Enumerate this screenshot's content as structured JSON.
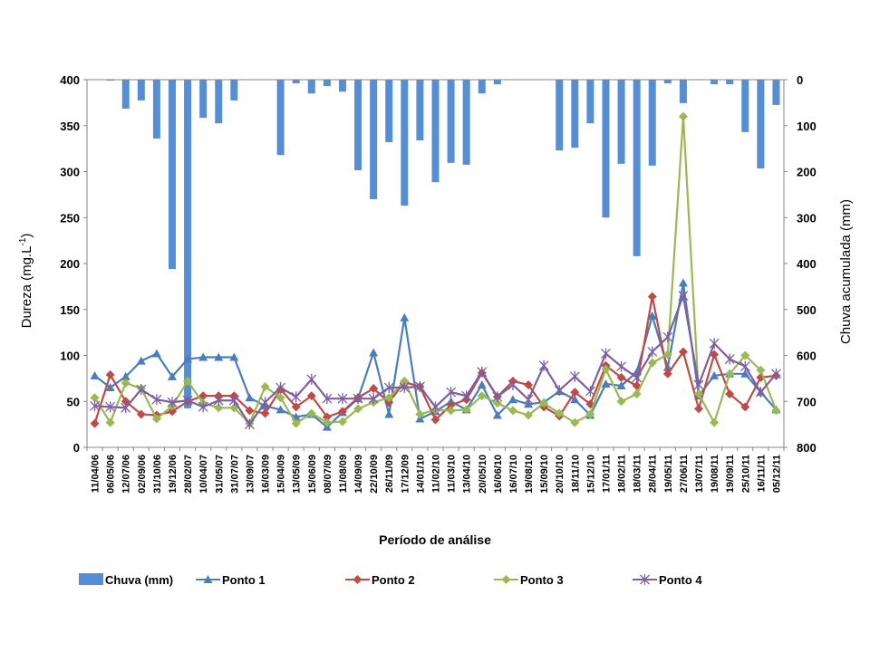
{
  "chart_data": {
    "type": "line",
    "title": "",
    "xlabel": "Período de análise",
    "ylabel": "Dureza (mg.L-1)",
    "ylabel_main": "Dureza (mg.L",
    "ylabel_sup": "-1",
    "ylabel_close": ")",
    "y2label": "Chuva acumulada (mm)",
    "ylim": [
      0,
      400
    ],
    "y2lim": [
      800,
      0
    ],
    "y2_inverted": true,
    "yticks": [
      "0",
      "50",
      "100",
      "150",
      "200",
      "250",
      "300",
      "350",
      "400"
    ],
    "y2ticks": [
      "0",
      "100",
      "200",
      "300",
      "400",
      "500",
      "600",
      "700",
      "800"
    ],
    "grid": false,
    "legend_position": "bottom",
    "categories": [
      "11/04/06",
      "06/05/06",
      "12/07/06",
      "02/09/06",
      "31/10/06",
      "19/12/06",
      "28/02/07",
      "10/04/07",
      "31/05/07",
      "31/07/07",
      "13/09/07",
      "16/03/09",
      "15/04/09",
      "13/05/09",
      "15/06/09",
      "08/07/09",
      "11/08/09",
      "14/09/09",
      "22/10/09",
      "26/11/09",
      "17/12/09",
      "14/01/10",
      "11/02/10",
      "11/03/10",
      "13/04/10",
      "20/05/10",
      "16/06/10",
      "16/07/10",
      "19/08/10",
      "15/09/10",
      "20/10/10",
      "18/11/10",
      "15/12/10",
      "17/01/11",
      "18/02/11",
      "18/03/11",
      "28/04/11",
      "19/05/11",
      "27/06/11",
      "13/07/11",
      "19/08/11",
      "19/09/11",
      "25/10/11",
      "16/11/11",
      "05/12/11"
    ],
    "bar_series": {
      "name": "Chuva (mm)",
      "color": "#558ED5",
      "axis": "right",
      "values": [
        0,
        2,
        63,
        45,
        128,
        412,
        715,
        83,
        95,
        45,
        0,
        0,
        164,
        8,
        30,
        14,
        26,
        197,
        260,
        136,
        274,
        132,
        223,
        181,
        185,
        30,
        10,
        0,
        0,
        0,
        154,
        148,
        95,
        300,
        183,
        384,
        187,
        8,
        51,
        0,
        10,
        10,
        114,
        193,
        55
      ]
    },
    "series": [
      {
        "name": "Ponto 1",
        "color": "#4A7EBB",
        "marker": "triangle",
        "values": [
          78,
          65,
          77,
          94,
          102,
          77,
          96,
          98,
          98,
          98,
          54,
          45,
          41,
          33,
          36,
          22,
          38,
          53,
          103,
          36,
          141,
          31,
          39,
          50,
          41,
          68,
          35,
          52,
          47,
          49,
          61,
          52,
          35,
          69,
          67,
          82,
          143,
          87,
          179,
          56,
          78,
          80,
          80,
          60,
          41
        ]
      },
      {
        "name": "Ponto 2",
        "color": "#BE4B48",
        "marker": "diamond",
        "values": [
          26,
          79,
          50,
          36,
          35,
          39,
          50,
          56,
          56,
          56,
          40,
          37,
          63,
          44,
          56,
          33,
          39,
          54,
          64,
          49,
          71,
          66,
          30,
          46,
          52,
          81,
          55,
          72,
          68,
          44,
          34,
          60,
          47,
          89,
          76,
          67,
          164,
          80,
          104,
          42,
          101,
          58,
          44,
          76,
          78
        ]
      },
      {
        "name": "Ponto 3",
        "color": "#98B954",
        "marker": "diamond",
        "values": [
          54,
          27,
          70,
          64,
          31,
          45,
          72,
          48,
          43,
          43,
          26,
          66,
          54,
          26,
          37,
          27,
          28,
          42,
          49,
          54,
          72,
          36,
          41,
          40,
          41,
          56,
          48,
          40,
          35,
          48,
          37,
          27,
          36,
          85,
          50,
          58,
          92,
          101,
          360,
          58,
          27,
          80,
          100,
          84,
          40
        ]
      },
      {
        "name": "Ponto 4",
        "color": "#7D60A0",
        "marker": "star",
        "values": [
          45,
          44,
          43,
          63,
          52,
          49,
          51,
          44,
          51,
          51,
          25,
          49,
          65,
          55,
          74,
          53,
          53,
          53,
          53,
          65,
          65,
          66,
          44,
          60,
          56,
          82,
          55,
          68,
          52,
          89,
          62,
          77,
          61,
          102,
          88,
          76,
          104,
          120,
          165,
          68,
          113,
          96,
          88,
          60,
          80
        ]
      }
    ]
  }
}
